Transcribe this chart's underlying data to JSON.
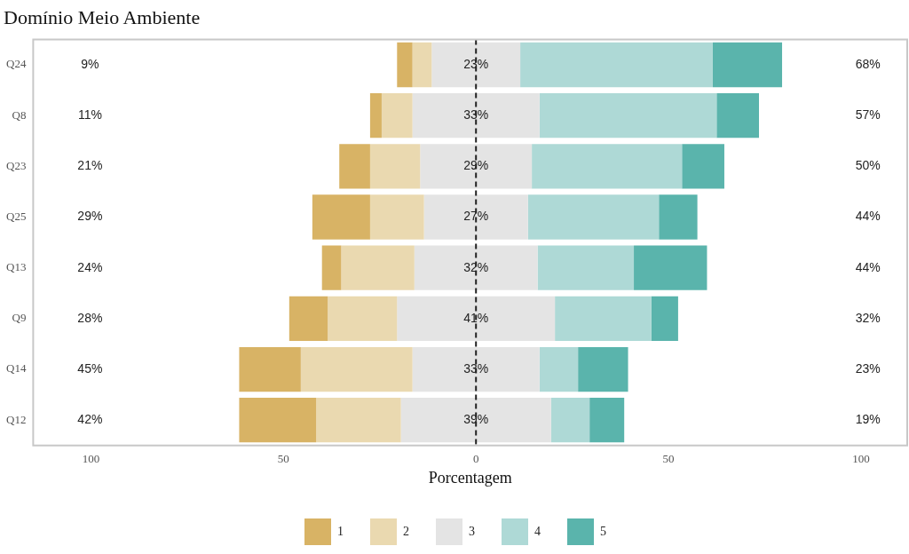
{
  "chart_data": {
    "type": "bar",
    "orientation": "horizontal",
    "title": "Domínio Meio Ambiente",
    "xlabel": "Porcentagem",
    "categories": [
      "Q24",
      "Q8",
      "Q23",
      "Q25",
      "Q13",
      "Q9",
      "Q14",
      "Q12"
    ],
    "series": [
      {
        "name": "1",
        "color": "#d8b365",
        "values": [
          4,
          3,
          8,
          15,
          5,
          10,
          16,
          20
        ],
        "base": [
          -20.5,
          -27.5,
          -35.5,
          -42.5,
          -40,
          -48.5,
          -61.5,
          -61.5
        ]
      },
      {
        "name": "2",
        "color": "#ead9b0",
        "values": [
          5,
          8,
          13,
          14,
          19,
          18,
          29,
          22
        ],
        "base": [
          -16.5,
          -24.5,
          -27.5,
          -27.5,
          -35,
          -38.5,
          -45.5,
          -41.5
        ]
      },
      {
        "name": "3",
        "color": "#e4e4e4",
        "values": [
          23,
          33,
          29,
          27,
          32,
          41,
          33,
          39
        ],
        "base": [
          -11.5,
          -16.5,
          -14.5,
          -13.5,
          -16,
          -20.5,
          -16.5,
          -19.5
        ],
        "value_labels": [
          "23%",
          "33%",
          "29%",
          "27%",
          "32%",
          "41%",
          "33%",
          "39%"
        ]
      },
      {
        "name": "4",
        "color": "#aed9d6",
        "values": [
          50,
          46,
          39,
          34,
          25,
          25,
          10,
          10
        ],
        "base": [
          11.5,
          16.5,
          14.5,
          13.5,
          16,
          20.5,
          16.5,
          19.5
        ]
      },
      {
        "name": "5",
        "color": "#5ab4ac",
        "values": [
          18,
          11,
          11,
          10,
          19,
          7,
          13,
          9
        ],
        "base": [
          61.5,
          62.5,
          53.5,
          47.5,
          41,
          45.5,
          26.5,
          29.5
        ]
      }
    ],
    "xlim": [
      -115,
      112
    ],
    "xticks": [
      {
        "value": -100,
        "label": "100"
      },
      {
        "value": -50,
        "label": "50"
      },
      0,
      50,
      100
    ],
    "ref_lines": [
      {
        "axis": "x",
        "value": 0,
        "label": null,
        "color": "#222222",
        "line_style": "dashed"
      }
    ],
    "annotations": [
      "9%",
      "11%",
      "21%",
      "29%",
      "24%",
      "28%",
      "45%",
      "42%",
      "68%",
      "57%",
      "50%",
      "44%",
      "44%",
      "32%",
      "23%",
      "19%"
    ],
    "legend": "bottom"
  }
}
